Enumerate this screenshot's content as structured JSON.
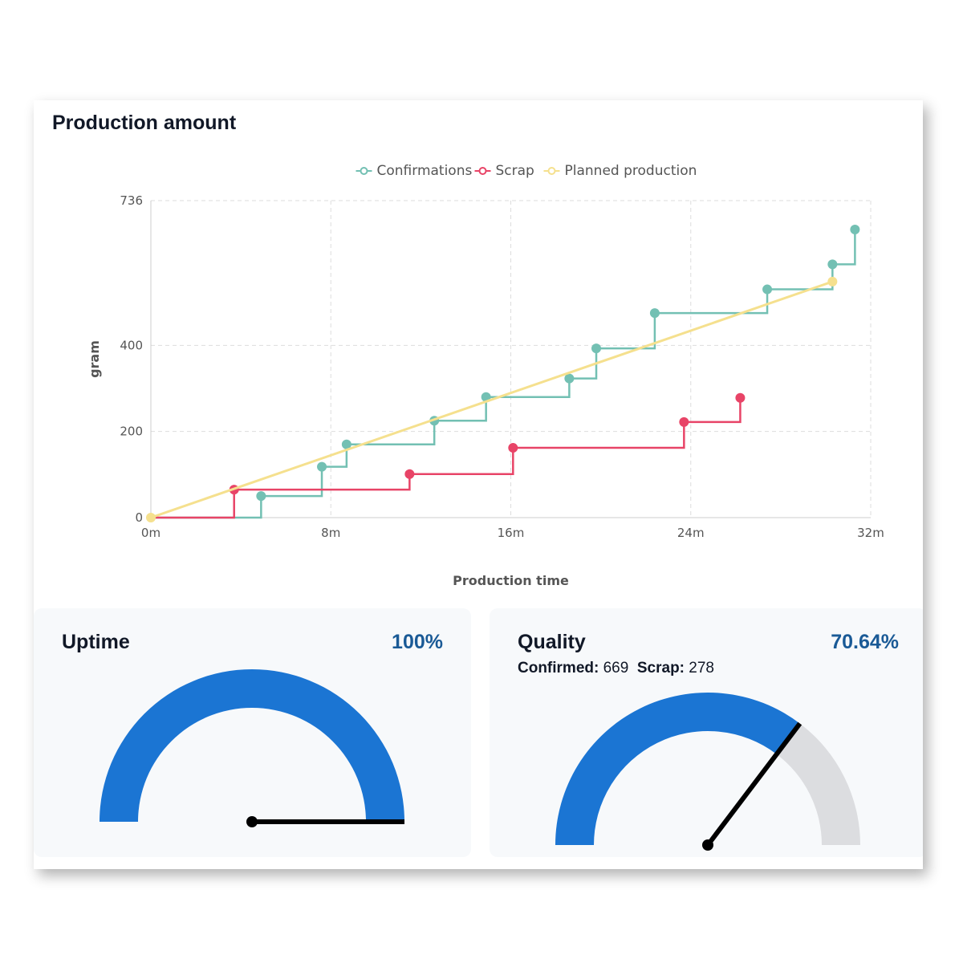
{
  "card": {
    "title": "Production amount"
  },
  "chart_data": {
    "type": "line",
    "title": "Production amount",
    "xlabel": "Production time",
    "ylabel": "gram",
    "xlim": [
      0,
      32
    ],
    "ylim": [
      0,
      736
    ],
    "x_ticks": [
      "0m",
      "8m",
      "16m",
      "24m",
      "32m"
    ],
    "y_ticks": [
      "0",
      "200",
      "400",
      "736"
    ],
    "legend": {
      "placement": "top-center"
    },
    "grid": true,
    "series": [
      {
        "name": "Confirmations",
        "color": "#73c0b3",
        "step": true,
        "points": [
          [
            4.9,
            50
          ],
          [
            7.6,
            118
          ],
          [
            8.7,
            170
          ],
          [
            12.6,
            225
          ],
          [
            14.9,
            280
          ],
          [
            18.6,
            323
          ],
          [
            19.8,
            393
          ],
          [
            22.4,
            475
          ],
          [
            27.4,
            530
          ],
          [
            30.3,
            588
          ],
          [
            31.3,
            669
          ]
        ]
      },
      {
        "name": "Scrap",
        "color": "#e84467",
        "step": true,
        "points": [
          [
            3.7,
            65
          ],
          [
            11.5,
            101
          ],
          [
            16.1,
            162
          ],
          [
            23.7,
            222
          ],
          [
            26.2,
            278
          ]
        ]
      },
      {
        "name": "Planned production",
        "color": "#f5e08e",
        "step": false,
        "points": [
          [
            0,
            0
          ],
          [
            30.3,
            548
          ]
        ]
      }
    ]
  },
  "uptime": {
    "title": "Uptime",
    "value": "100%",
    "ratio": 1.0
  },
  "quality": {
    "title": "Quality",
    "value": "70.64%",
    "ratio": 0.7064,
    "confirmed_label": "Confirmed:",
    "confirmed_value": "669",
    "scrap_label": "Scrap:",
    "scrap_value": "278"
  },
  "colors": {
    "gauge_fill": "#1b75d3",
    "gauge_track": "#dcdde0",
    "needle": "#000000",
    "axis_text": "#555555",
    "grid": "#dddddd"
  }
}
